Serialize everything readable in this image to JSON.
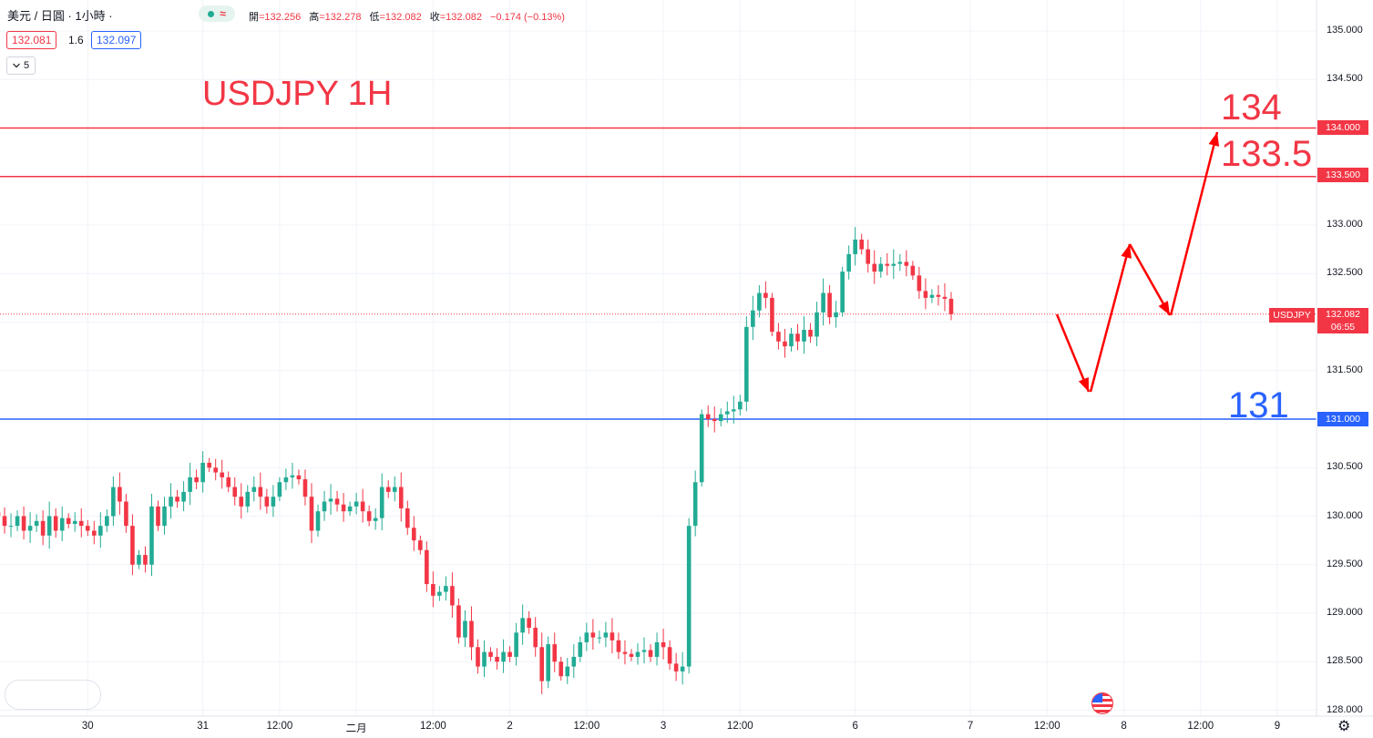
{
  "header": {
    "symbol_title": "美元 / 日圓 · 1小時 ·",
    "ohlc": [
      {
        "key": "開",
        "val": "=132.256"
      },
      {
        "key": "高",
        "val": "=132.278"
      },
      {
        "key": "低",
        "val": "=132.082"
      },
      {
        "key": "收",
        "val": "=132.082"
      }
    ],
    "change": "−0.174 (−0.13%)",
    "sell_price": "132.081",
    "spread": "1.6",
    "buy_price": "132.097",
    "indicator_count": "5"
  },
  "annotations": {
    "title": "USDJPY 1H",
    "level_134": "134",
    "level_133_5": "133.5",
    "level_131": "131"
  },
  "price_label": {
    "symbol": "USDJPY",
    "price": "132.082",
    "countdown": "06:55"
  },
  "colors": {
    "up": "#22ab94",
    "down": "#f23645",
    "resistance": "#f23645",
    "support": "#2962ff",
    "arrow": "#ff0000"
  },
  "icons": [
    "live-dot-icon",
    "wave-icon",
    "chevron-down-icon",
    "us-flag-icon",
    "gear-icon"
  ],
  "chart_data": {
    "type": "candlestick",
    "timeframe": "1H",
    "ylim": [
      127.95,
      135.1
    ],
    "y_ticks": [
      "135.000",
      "134.500",
      "134.000",
      "133.500",
      "133.000",
      "132.500",
      "132.000",
      "131.500",
      "131.000",
      "130.500",
      "130.000",
      "129.500",
      "129.000",
      "128.500",
      "128.000"
    ],
    "y_tick_values": [
      135.0,
      134.5,
      134.0,
      133.5,
      133.0,
      132.5,
      132.0,
      131.5,
      131.0,
      130.5,
      130.0,
      129.5,
      129.0,
      128.5,
      128.0
    ],
    "x_ticks": [
      "30",
      "31",
      "12:00",
      "二月",
      "12:00",
      "2",
      "12:00",
      "3",
      "12:00",
      "6",
      "7",
      "12:00",
      "8",
      "12:00",
      "9"
    ],
    "x_tick_bars": [
      14,
      32,
      44,
      56,
      68,
      80,
      92,
      104,
      116,
      134,
      152,
      164,
      176,
      188,
      200
    ],
    "horizontal_lines": [
      {
        "value": 134.0,
        "label": "134.000",
        "color": "resistance"
      },
      {
        "value": 133.5,
        "label": "133.500",
        "color": "resistance"
      },
      {
        "value": 131.0,
        "label": "131.000",
        "color": "support"
      }
    ],
    "last_price": 132.082,
    "closes": [
      130.0,
      129.9,
      129.9,
      130.0,
      129.85,
      129.9,
      129.95,
      129.8,
      130.0,
      129.85,
      129.98,
      129.92,
      129.95,
      129.9,
      129.85,
      129.8,
      129.9,
      130.0,
      130.3,
      130.15,
      129.9,
      129.5,
      129.6,
      129.5,
      130.1,
      129.9,
      130.1,
      130.2,
      130.15,
      130.25,
      130.4,
      130.35,
      130.55,
      130.5,
      130.45,
      130.4,
      130.3,
      130.2,
      130.1,
      130.25,
      130.3,
      130.2,
      130.1,
      130.2,
      130.35,
      130.4,
      130.42,
      130.38,
      130.2,
      129.85,
      130.05,
      130.15,
      130.18,
      130.12,
      130.05,
      130.1,
      130.15,
      130.05,
      129.95,
      129.98,
      130.3,
      130.25,
      130.3,
      130.08,
      129.88,
      129.75,
      129.65,
      129.3,
      129.18,
      129.22,
      129.28,
      129.08,
      128.75,
      128.92,
      128.65,
      128.45,
      128.6,
      128.55,
      128.5,
      128.6,
      128.55,
      128.8,
      128.95,
      128.85,
      128.65,
      128.3,
      128.68,
      128.5,
      128.35,
      128.45,
      128.55,
      128.7,
      128.8,
      128.75,
      128.75,
      128.8,
      128.72,
      128.6,
      128.58,
      128.55,
      128.6,
      128.62,
      128.55,
      128.7,
      128.65,
      128.48,
      128.4,
      128.45,
      129.9,
      130.35,
      131.05,
      131.0,
      130.98,
      131.05,
      131.08,
      131.1,
      131.18,
      131.95,
      132.12,
      132.3,
      132.25,
      131.9,
      131.8,
      131.75,
      131.88,
      131.8,
      131.92,
      131.85,
      132.1,
      132.3,
      132.05,
      132.1,
      132.52,
      132.7,
      132.85,
      132.75,
      132.6,
      132.52,
      132.6,
      132.58,
      132.6,
      132.62,
      132.58,
      132.48,
      132.32,
      132.25,
      132.28,
      132.26,
      132.24,
      132.082
    ]
  }
}
